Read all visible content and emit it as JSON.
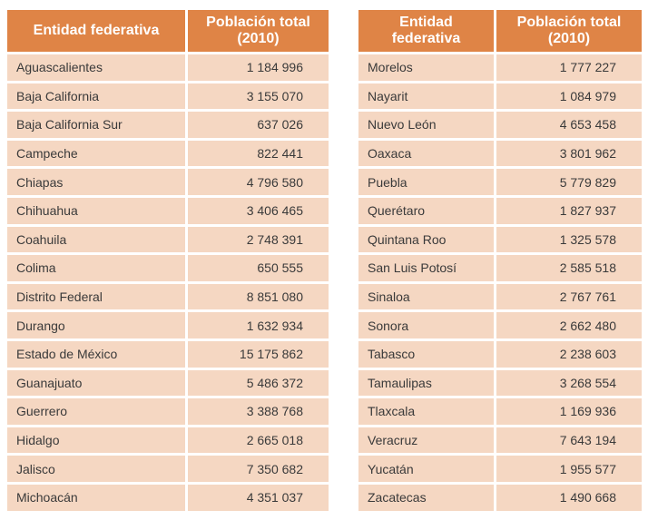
{
  "left_table": {
    "headers": [
      "Entidad federativa",
      "Población total (2010)"
    ],
    "rows": [
      [
        "Aguascalientes",
        "1 184 996"
      ],
      [
        "Baja California",
        "3 155 070"
      ],
      [
        "Baja California Sur",
        "637 026"
      ],
      [
        "Campeche",
        "822 441"
      ],
      [
        "Chiapas",
        "4 796 580"
      ],
      [
        "Chihuahua",
        "3 406 465"
      ],
      [
        "Coahuila",
        "2 748 391"
      ],
      [
        "Colima",
        "650 555"
      ],
      [
        "Distrito Federal",
        "8 851 080"
      ],
      [
        "Durango",
        "1 632 934"
      ],
      [
        "Estado de México",
        "15 175 862"
      ],
      [
        "Guanajuato",
        "5 486 372"
      ],
      [
        "Guerrero",
        "3 388 768"
      ],
      [
        "Hidalgo",
        "2 665 018"
      ],
      [
        "Jalisco",
        "7 350 682"
      ],
      [
        "Michoacán",
        "4 351 037"
      ]
    ]
  },
  "right_table": {
    "headers": [
      "Entidad federativa",
      "Población total (2010)"
    ],
    "rows": [
      [
        "Morelos",
        "1 777 227"
      ],
      [
        "Nayarit",
        "1 084 979"
      ],
      [
        "Nuevo León",
        "4 653 458"
      ],
      [
        "Oaxaca",
        "3 801 962"
      ],
      [
        "Puebla",
        "5 779 829"
      ],
      [
        "Querétaro",
        "1 827 937"
      ],
      [
        "Quintana Roo",
        "1 325 578"
      ],
      [
        "San Luis Potosí",
        "2 585 518"
      ],
      [
        "Sinaloa",
        "2 767 761"
      ],
      [
        "Sonora",
        "2 662 480"
      ],
      [
        "Tabasco",
        "2 238 603"
      ],
      [
        "Tamaulipas",
        "3 268 554"
      ],
      [
        "Tlaxcala",
        "1 169 936"
      ],
      [
        "Veracruz",
        "7 643 194"
      ],
      [
        "Yucatán",
        "1 955 577"
      ],
      [
        "Zacatecas",
        "1 490 668"
      ]
    ]
  },
  "colors": {
    "header_bg": "#df8446",
    "header_text": "#ffffff",
    "cell_bg": "#f5d7c2",
    "cell_text": "#3a3a3a"
  }
}
